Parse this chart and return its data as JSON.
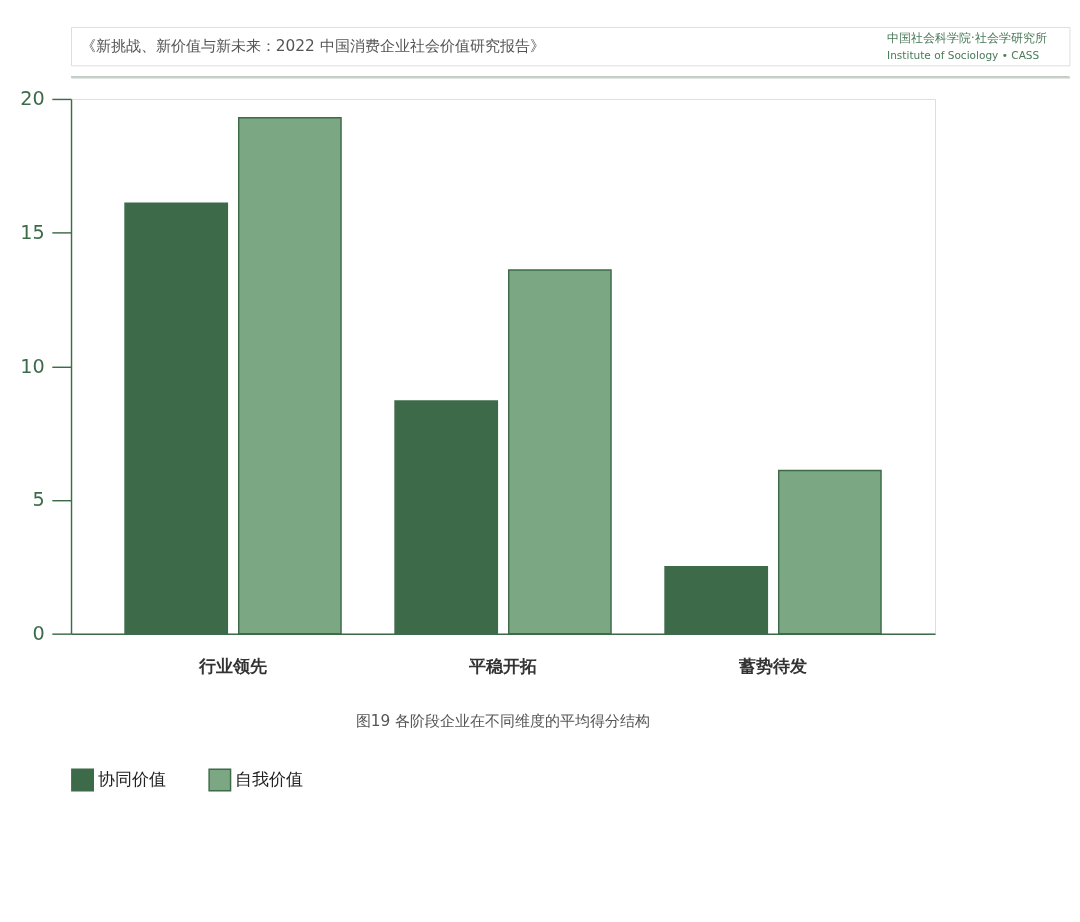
{
  "chart_data": {
    "type": "bar",
    "title": "图19 各阶段企业在不同维度的平均得分结构",
    "annotations": [
      "《新挑战、新价值与新未来：2022 中国消费企业社会价值研究报告》",
      "中国社会科学院·社会学研究所",
      "Institute of Sociology • CASS"
    ],
    "categories": [
      "行业领先",
      "平稳开拓",
      "蓄势待发"
    ],
    "series": [
      {
        "name": "协同价值",
        "color": "#3d6b4a",
        "values": [
          16.1,
          8.7,
          2.5
        ]
      },
      {
        "name": "自我价值",
        "color": "#7ba783",
        "values": [
          19.3,
          13.6,
          6.1
        ]
      }
    ],
    "ylim": [
      0,
      20
    ],
    "yticks": [
      0,
      5,
      10,
      15,
      20
    ],
    "grid": false,
    "legend": "bottom"
  }
}
